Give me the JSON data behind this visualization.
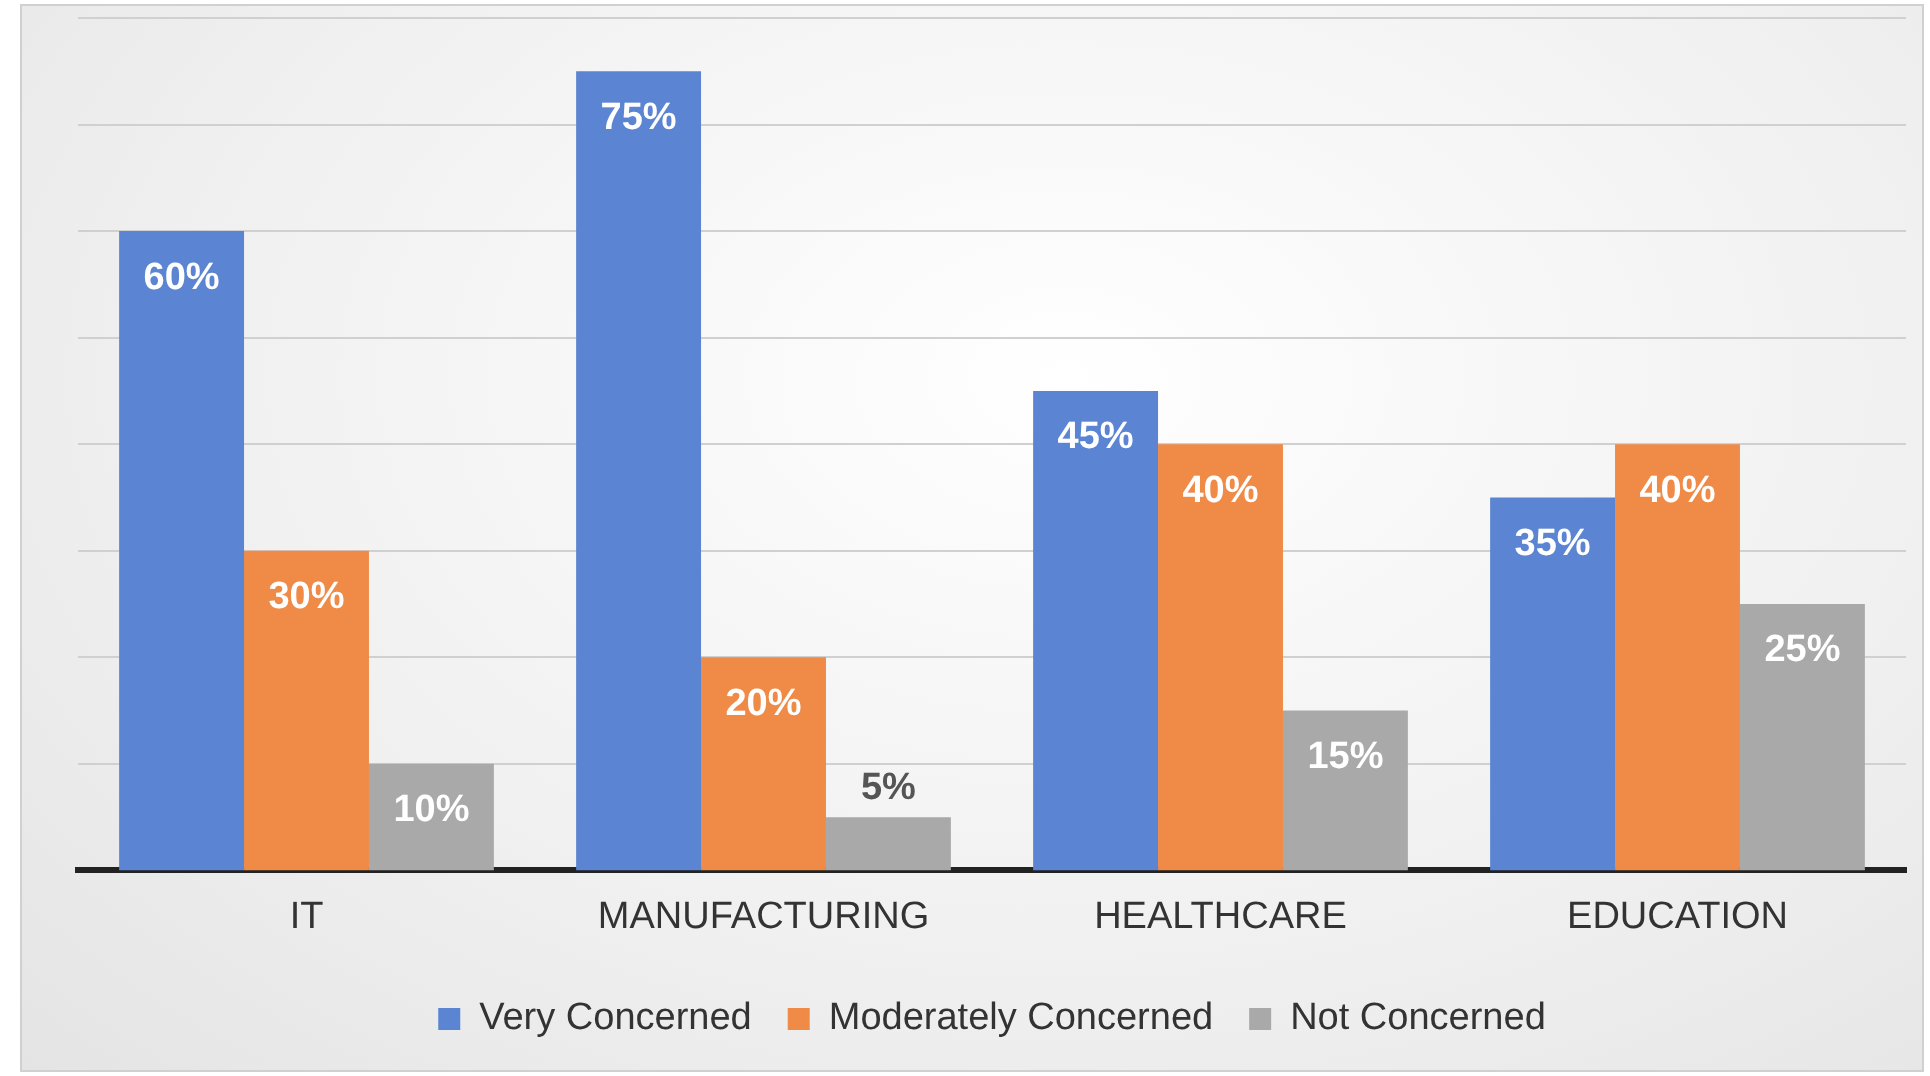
{
  "chart_data": {
    "type": "bar",
    "categories": [
      "IT",
      "MANUFACTURING",
      "HEALTHCARE",
      "EDUCATION"
    ],
    "series": [
      {
        "name": "Very Concerned",
        "color": "#5b84d2",
        "values": [
          60,
          75,
          45,
          35
        ],
        "value_labels": [
          "60%",
          "75%",
          "45%",
          "35%"
        ]
      },
      {
        "name": "Moderately Concerned",
        "color": "#ef8a47",
        "values": [
          30,
          20,
          40,
          40
        ],
        "value_labels": [
          "30%",
          "20%",
          "40%",
          "40%"
        ]
      },
      {
        "name": "Not Concerned",
        "color": "#a9a9a9",
        "values": [
          10,
          5,
          15,
          25
        ],
        "value_labels": [
          "10%",
          "5%",
          "15%",
          "25%"
        ]
      }
    ],
    "ylim": [
      0,
      80
    ],
    "yticks": [
      {
        "value": 0,
        "label": null
      },
      {
        "value": 10,
        "label": null
      },
      {
        "value": 20,
        "label": null
      },
      {
        "value": 30,
        "label": null
      },
      {
        "value": 40,
        "label": null
      },
      {
        "value": 50,
        "label": null
      },
      {
        "value": 60,
        "label": null
      },
      {
        "value": 70,
        "label": null
      },
      {
        "value": 80,
        "label": null
      }
    ],
    "tick_labels": "x",
    "grid": "y",
    "legend": "bottom"
  }
}
